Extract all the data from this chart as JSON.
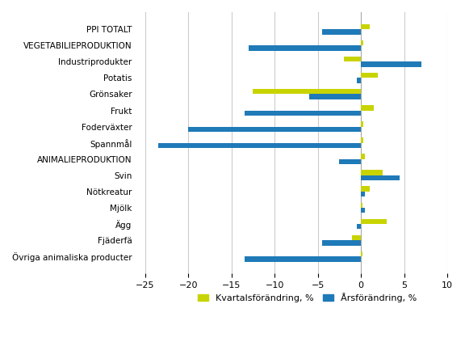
{
  "categories": [
    "PPI TOTALT",
    "VEGETABILIEPRODUKTION",
    "Industriprodukter",
    "Potatis",
    "Grönsaker",
    "Frukt",
    "Foderväxter",
    "Spannmål",
    "ANIMALIEPRODUKTION",
    "Svin",
    "Nötkreatur",
    "Mjölk",
    "Ägg",
    "Fjäderfä",
    "Övriga animaliska producter"
  ],
  "kvartals": [
    1.0,
    0.3,
    -2.0,
    2.0,
    -12.5,
    1.5,
    0.3,
    0.3,
    0.5,
    2.5,
    1.0,
    0.2,
    3.0,
    -1.0,
    0.2
  ],
  "ars": [
    -4.5,
    -13.0,
    7.0,
    -0.5,
    -6.0,
    -13.5,
    -20.0,
    -23.5,
    -2.5,
    4.5,
    0.5,
    0.5,
    -0.5,
    -4.5,
    -13.5
  ],
  "kvartals_color": "#c8d400",
  "ars_color": "#1f7ab8",
  "xlim": [
    -26,
    10
  ],
  "xticks": [
    -25,
    -20,
    -15,
    -10,
    -5,
    0,
    5,
    10
  ],
  "legend_labels": [
    "Kvartalsförändring, %",
    "Årsförändring, %"
  ],
  "grid_color": "#cccccc",
  "bg_color": "#ffffff",
  "bar_height": 0.32
}
